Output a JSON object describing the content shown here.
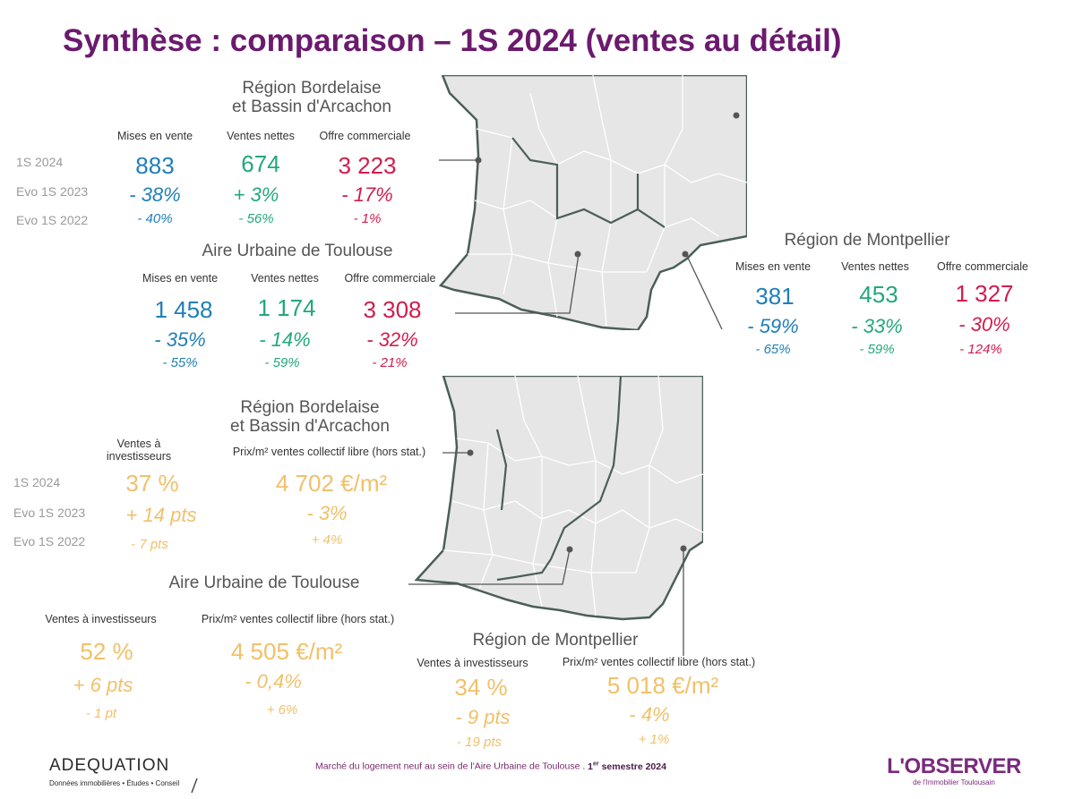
{
  "title": "Synthèse : comparaison – 1S 2024 (ventes au détail)",
  "row_labels": {
    "current": "1S 2024",
    "evo_2023": "Evo 1S 2023",
    "evo_2022": "Evo 1S 2022"
  },
  "colors": {
    "title": "#6b1a6e",
    "mises": "#1f7fb8",
    "ventes": "#22a87a",
    "offre": "#d21c4d",
    "invest": "#f1c06b",
    "map_fill": "#e6e6e6",
    "map_border": "#4a5f57"
  },
  "top": {
    "bordeaux": {
      "title_line1": "Région Bordelaise",
      "title_line2": "et Bassin d'Arcachon",
      "cols": [
        "Mises en vente",
        "Ventes nettes",
        "Offre commerciale"
      ],
      "mises": {
        "v": "883",
        "e23": "- 38%",
        "e22": "- 40%"
      },
      "ventes": {
        "v": "674",
        "e23": "+ 3%",
        "e22": "- 56%"
      },
      "offre": {
        "v": "3 223",
        "e23": "- 17%",
        "e22": "- 1%"
      }
    },
    "toulouse": {
      "title": "Aire Urbaine de Toulouse",
      "cols": [
        "Mises en vente",
        "Ventes nettes",
        "Offre commerciale"
      ],
      "mises": {
        "v": "1 458",
        "e23": "- 35%",
        "e22": "- 55%"
      },
      "ventes": {
        "v": "1 174",
        "e23": "- 14%",
        "e22": "- 59%"
      },
      "offre": {
        "v": "3 308",
        "e23": "- 32%",
        "e22": "- 21%"
      }
    },
    "montpellier": {
      "title": "Région de Montpellier",
      "cols": [
        "Mises en vente",
        "Ventes nettes",
        "Offre commerciale"
      ],
      "mises": {
        "v": "381",
        "e23": "- 59%",
        "e22": "- 65%"
      },
      "ventes": {
        "v": "453",
        "e23": "- 33%",
        "e22": "- 59%"
      },
      "offre": {
        "v": "1 327",
        "e23": "- 30%",
        "e22": "- 124%"
      }
    }
  },
  "bottom": {
    "bordeaux": {
      "title_line1": "Région Bordelaise",
      "title_line2": "et Bassin d'Arcachon",
      "col_invest_1": "Ventes à",
      "col_invest_2": "investisseurs",
      "col_prix": "Prix/m² ventes collectif libre (hors stat.)",
      "invest": {
        "v": "37 %",
        "e23": "+ 14 pts",
        "e22": "- 7 pts"
      },
      "prix": {
        "v": "4 702 €/m²",
        "e23": "- 3%",
        "e22": "+ 4%"
      }
    },
    "toulouse": {
      "title": "Aire Urbaine de Toulouse",
      "col_invest": "Ventes à investisseurs",
      "col_prix": "Prix/m² ventes collectif libre (hors stat.)",
      "invest": {
        "v": "52 %",
        "e23": "+ 6 pts",
        "e22": "- 1 pt"
      },
      "prix": {
        "v": "4 505 €/m²",
        "e23": "- 0,4%",
        "e22": "+ 6%"
      }
    },
    "montpellier": {
      "title": "Région de Montpellier",
      "col_invest": "Ventes à investisseurs",
      "col_prix": "Prix/m² ventes collectif libre (hors stat.)",
      "invest": {
        "v": "34 %",
        "e23": "- 9 pts",
        "e22": "- 19 pts"
      },
      "prix": {
        "v": "5 018 €/m²",
        "e23": "- 4%",
        "e22": "+ 1%"
      }
    }
  },
  "footer": {
    "left_logo": "ADEQUATION",
    "left_tagline": "Données immobilières • Études • Conseil",
    "center_text": "Marché du logement neuf au sein de l'Aire Urbaine de Toulouse .",
    "center_sup_1": "1",
    "center_sup_2": "er",
    "center_bold": "semestre 2024",
    "right_logo": "L'OBSERVER",
    "right_tagline": "de l'Immobilier Toulousain"
  }
}
